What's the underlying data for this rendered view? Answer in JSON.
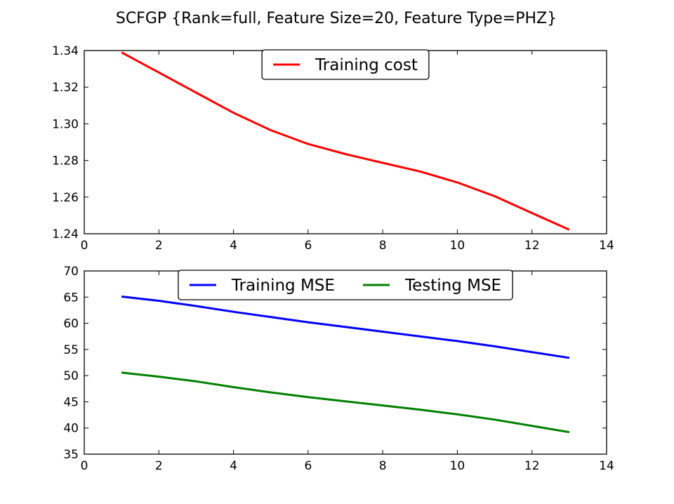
{
  "title": "SCFGP {Rank=full, Feature Size=20, Feature Type=PHZ}",
  "chart_data": [
    {
      "type": "line",
      "xlim": [
        0,
        14
      ],
      "ylim": [
        1.24,
        1.34
      ],
      "xticks": [
        0,
        2,
        4,
        6,
        8,
        10,
        12,
        14
      ],
      "yticks": [
        1.24,
        1.26,
        1.28,
        1.3,
        1.32,
        1.34
      ],
      "xtick_labels": [
        "0",
        "2",
        "4",
        "6",
        "8",
        "10",
        "12",
        "14"
      ],
      "ytick_labels": [
        "1.24",
        "1.26",
        "1.28",
        "1.30",
        "1.32",
        "1.34"
      ],
      "grid": false,
      "legend": "top-center",
      "series": [
        {
          "name": "Training cost",
          "color": "#ff0000",
          "x": [
            1,
            2,
            3,
            4,
            5,
            6,
            7,
            8,
            9,
            10,
            11,
            12,
            13
          ],
          "values": [
            1.339,
            1.328,
            1.317,
            1.306,
            1.2965,
            1.289,
            1.2835,
            1.2787,
            1.274,
            1.268,
            1.2605,
            1.2513,
            1.2422
          ]
        }
      ]
    },
    {
      "type": "line",
      "xlim": [
        0,
        14
      ],
      "ylim": [
        35,
        70
      ],
      "xticks": [
        0,
        2,
        4,
        6,
        8,
        10,
        12,
        14
      ],
      "yticks": [
        35,
        40,
        45,
        50,
        55,
        60,
        65,
        70
      ],
      "xtick_labels": [
        "0",
        "2",
        "4",
        "6",
        "8",
        "10",
        "12",
        "14"
      ],
      "ytick_labels": [
        "35",
        "40",
        "45",
        "50",
        "55",
        "60",
        "65",
        "70"
      ],
      "grid": false,
      "legend": "top-center",
      "series": [
        {
          "name": "Training MSE",
          "color": "#0000ff",
          "x": [
            1,
            2,
            3,
            4,
            5,
            6,
            7,
            8,
            9,
            10,
            11,
            12,
            13
          ],
          "values": [
            65.1,
            64.3,
            63.3,
            62.2,
            61.2,
            60.2,
            59.3,
            58.4,
            57.5,
            56.6,
            55.6,
            54.5,
            53.4
          ]
        },
        {
          "name": "Testing MSE",
          "color": "#008000",
          "x": [
            1,
            2,
            3,
            4,
            5,
            6,
            7,
            8,
            9,
            10,
            11,
            12,
            13
          ],
          "values": [
            50.6,
            49.8,
            48.9,
            47.8,
            46.8,
            45.9,
            45.1,
            44.3,
            43.5,
            42.6,
            41.6,
            40.4,
            39.2
          ]
        }
      ]
    }
  ]
}
